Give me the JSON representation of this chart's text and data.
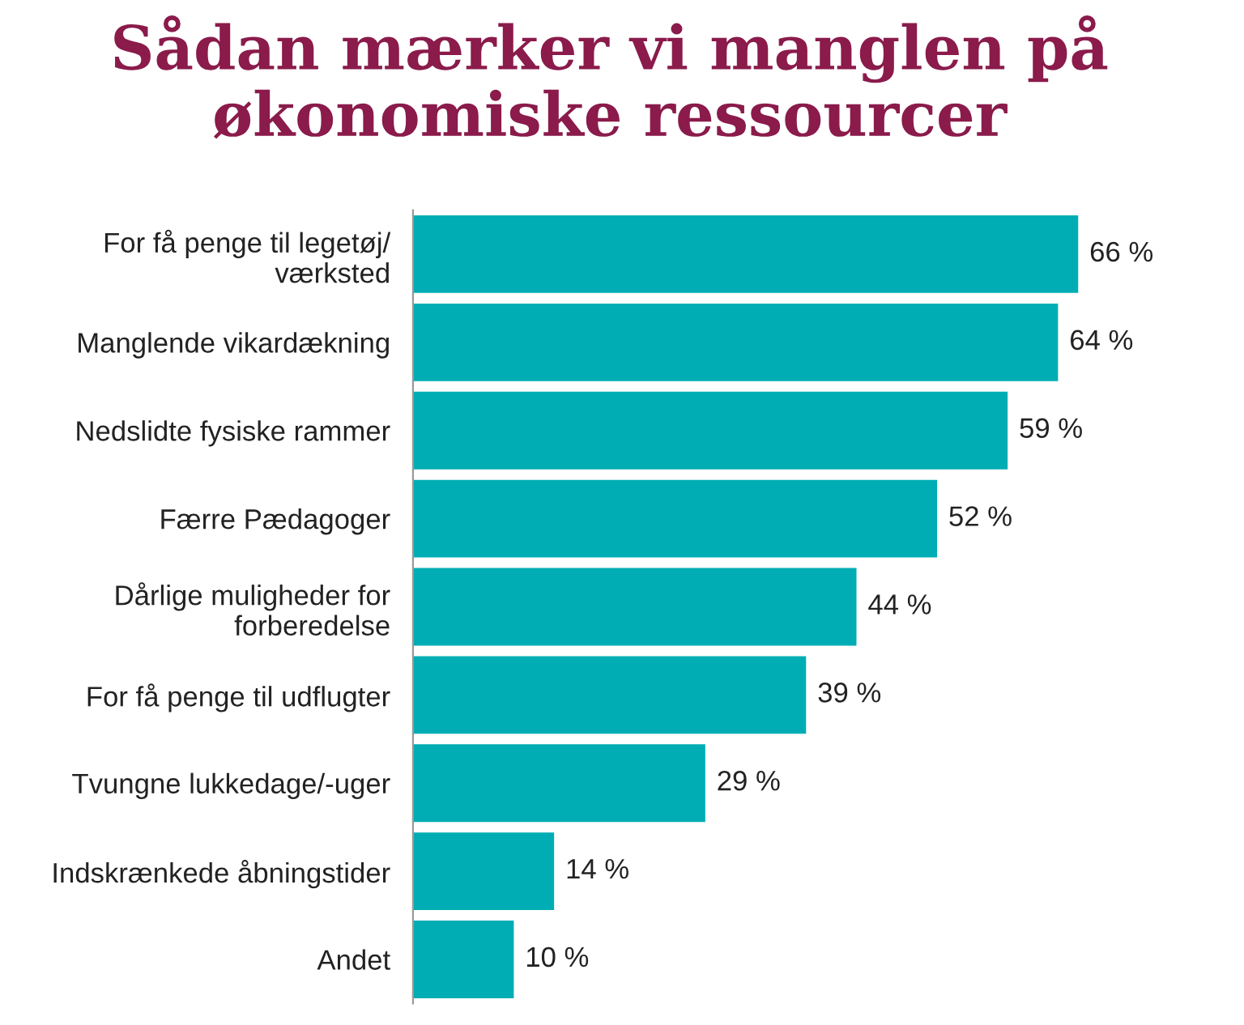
{
  "chart_data": {
    "type": "bar",
    "orientation": "horizontal",
    "title": "Sådan mærker vi manglen på\nøkonomiske ressourcer",
    "categories": [
      "For få penge til legetøj/\nværksted",
      "Manglende vikardækning",
      "Nedslidte fysiske rammer",
      "Færre Pædagoger",
      "Dårlige muligheder for\nforberedelse",
      "For få penge til udflugter",
      "Tvungne lukkedage/-uger",
      "Indskrænkede åbningstider",
      "Andet"
    ],
    "values": [
      66,
      64,
      59,
      52,
      44,
      39,
      29,
      14,
      10
    ],
    "value_labels": [
      "66 %",
      "64 %",
      "59 %",
      "52 %",
      "44 %",
      "39 %",
      "29 %",
      "14 %",
      "10 %"
    ],
    "color": "#00adb4",
    "grid": false,
    "legend": false
  }
}
